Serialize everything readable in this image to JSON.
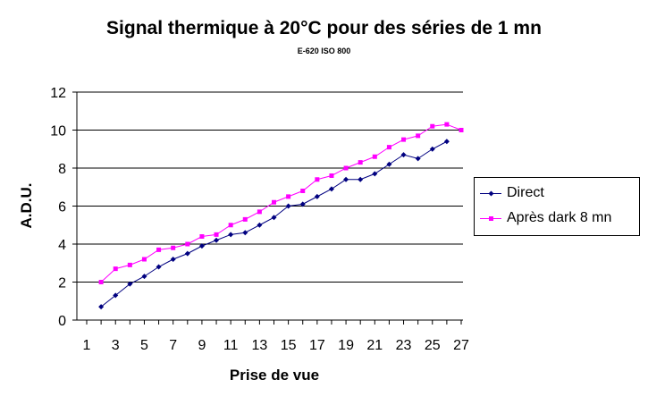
{
  "chart_data": {
    "type": "line",
    "title": "Signal thermique à 20°C pour des séries de 1 mn",
    "subtitle": "E-620 ISO 800",
    "xlabel": "Prise de vue",
    "ylabel": "A.D.U.",
    "x": [
      1,
      2,
      3,
      4,
      5,
      6,
      7,
      8,
      9,
      10,
      11,
      12,
      13,
      14,
      15,
      16,
      17,
      18,
      19,
      20,
      21,
      22,
      23,
      24,
      25,
      26,
      27
    ],
    "x_tick_labels": [
      "1",
      "3",
      "5",
      "7",
      "9",
      "11",
      "13",
      "15",
      "17",
      "19",
      "21",
      "23",
      "25",
      "27"
    ],
    "y_tick_labels": [
      "0",
      "2",
      "4",
      "6",
      "8",
      "10",
      "12"
    ],
    "xlim": [
      1,
      27
    ],
    "ylim": [
      0,
      12
    ],
    "grid": "horizontal",
    "legend_position": "right",
    "series": [
      {
        "name": "Direct",
        "color": "#000080",
        "marker": "diamond",
        "x": [
          2,
          3,
          4,
          5,
          6,
          7,
          8,
          9,
          10,
          11,
          12,
          13,
          14,
          15,
          16,
          17,
          18,
          19,
          20,
          21,
          22,
          23,
          24,
          25,
          26
        ],
        "values": [
          0.7,
          1.3,
          1.9,
          2.3,
          2.8,
          3.2,
          3.5,
          3.9,
          4.2,
          4.5,
          4.6,
          5.0,
          5.4,
          6.0,
          6.1,
          6.5,
          6.9,
          7.4,
          7.4,
          7.7,
          8.2,
          8.7,
          8.5,
          9.0,
          9.4
        ]
      },
      {
        "name": "Après dark 8 mn",
        "color": "#FF00FF",
        "marker": "square",
        "x": [
          2,
          3,
          4,
          5,
          6,
          7,
          8,
          9,
          10,
          11,
          12,
          13,
          14,
          15,
          16,
          17,
          18,
          19,
          20,
          21,
          22,
          23,
          24,
          25,
          26,
          27
        ],
        "values": [
          2.0,
          2.7,
          2.9,
          3.2,
          3.7,
          3.8,
          4.0,
          4.4,
          4.5,
          5.0,
          5.3,
          5.7,
          6.2,
          6.5,
          6.8,
          7.4,
          7.6,
          8.0,
          8.3,
          8.6,
          9.1,
          9.5,
          9.7,
          10.2,
          10.3,
          10.0
        ]
      }
    ]
  }
}
